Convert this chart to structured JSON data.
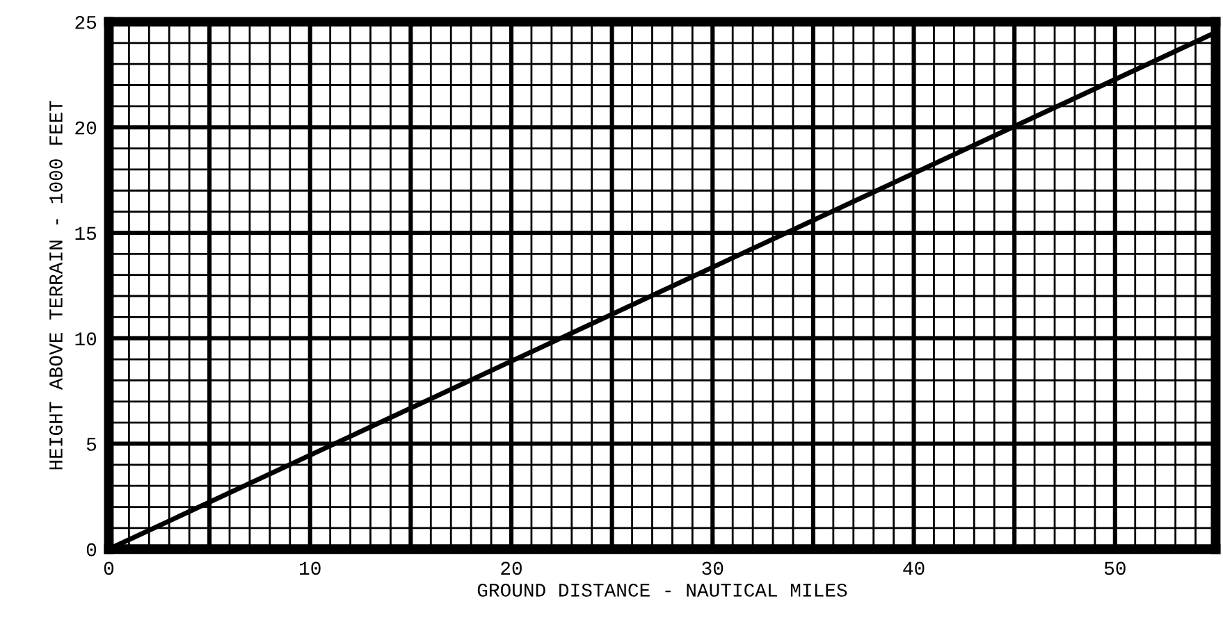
{
  "chart_data": {
    "type": "line",
    "xlabel": "GROUND DISTANCE - NAUTICAL MILES",
    "ylabel": "HEIGHT ABOVE TERRAIN - 1000 FEET",
    "series": [
      {
        "x": [
          0,
          55
        ],
        "values": [
          0,
          24.5
        ],
        "color": "#000000"
      }
    ],
    "xlim": [
      0,
      55
    ],
    "ylim": [
      0,
      25
    ],
    "grid": true,
    "marker": "none",
    "line_style": "solid",
    "xticks": [
      0,
      {
        "value": 1,
        "label": null
      },
      {
        "value": 2,
        "label": null
      },
      {
        "value": 3,
        "label": null
      },
      {
        "value": 4,
        "label": null
      },
      {
        "value": 5,
        "label": null
      },
      {
        "value": 6,
        "label": null
      },
      {
        "value": 7,
        "label": null
      },
      {
        "value": 8,
        "label": null
      },
      {
        "value": 9,
        "label": null
      },
      10,
      {
        "value": 11,
        "label": null
      },
      {
        "value": 12,
        "label": null
      },
      {
        "value": 13,
        "label": null
      },
      {
        "value": 14,
        "label": null
      },
      {
        "value": 15,
        "label": null
      },
      {
        "value": 16,
        "label": null
      },
      {
        "value": 17,
        "label": null
      },
      {
        "value": 18,
        "label": null
      },
      {
        "value": 19,
        "label": null
      },
      20,
      {
        "value": 21,
        "label": null
      },
      {
        "value": 22,
        "label": null
      },
      {
        "value": 23,
        "label": null
      },
      {
        "value": 24,
        "label": null
      },
      {
        "value": 25,
        "label": null
      },
      {
        "value": 26,
        "label": null
      },
      {
        "value": 27,
        "label": null
      },
      {
        "value": 28,
        "label": null
      },
      {
        "value": 29,
        "label": null
      },
      30,
      {
        "value": 31,
        "label": null
      },
      {
        "value": 32,
        "label": null
      },
      {
        "value": 33,
        "label": null
      },
      {
        "value": 34,
        "label": null
      },
      {
        "value": 35,
        "label": null
      },
      {
        "value": 36,
        "label": null
      },
      {
        "value": 37,
        "label": null
      },
      {
        "value": 38,
        "label": null
      },
      {
        "value": 39,
        "label": null
      },
      40,
      {
        "value": 41,
        "label": null
      },
      {
        "value": 42,
        "label": null
      },
      {
        "value": 43,
        "label": null
      },
      {
        "value": 44,
        "label": null
      },
      {
        "value": 45,
        "label": null
      },
      {
        "value": 46,
        "label": null
      },
      {
        "value": 47,
        "label": null
      },
      {
        "value": 48,
        "label": null
      },
      {
        "value": 49,
        "label": null
      },
      50,
      {
        "value": 51,
        "label": null
      },
      {
        "value": 52,
        "label": null
      },
      {
        "value": 53,
        "label": null
      },
      {
        "value": 54,
        "label": null
      },
      {
        "value": 55,
        "label": null
      }
    ],
    "yticks": [
      0,
      {
        "value": 1,
        "label": null
      },
      {
        "value": 2,
        "label": null
      },
      {
        "value": 3,
        "label": null
      },
      {
        "value": 4,
        "label": null
      },
      5,
      {
        "value": 6,
        "label": null
      },
      {
        "value": 7,
        "label": null
      },
      {
        "value": 8,
        "label": null
      },
      {
        "value": 9,
        "label": null
      },
      10,
      {
        "value": 11,
        "label": null
      },
      {
        "value": 12,
        "label": null
      },
      {
        "value": 13,
        "label": null
      },
      {
        "value": 14,
        "label": null
      },
      15,
      {
        "value": 16,
        "label": null
      },
      {
        "value": 17,
        "label": null
      },
      {
        "value": 18,
        "label": null
      },
      {
        "value": 19,
        "label": null
      },
      20,
      {
        "value": 21,
        "label": null
      },
      {
        "value": 22,
        "label": null
      },
      {
        "value": 23,
        "label": null
      },
      {
        "value": 24,
        "label": null
      },
      25
    ]
  }
}
